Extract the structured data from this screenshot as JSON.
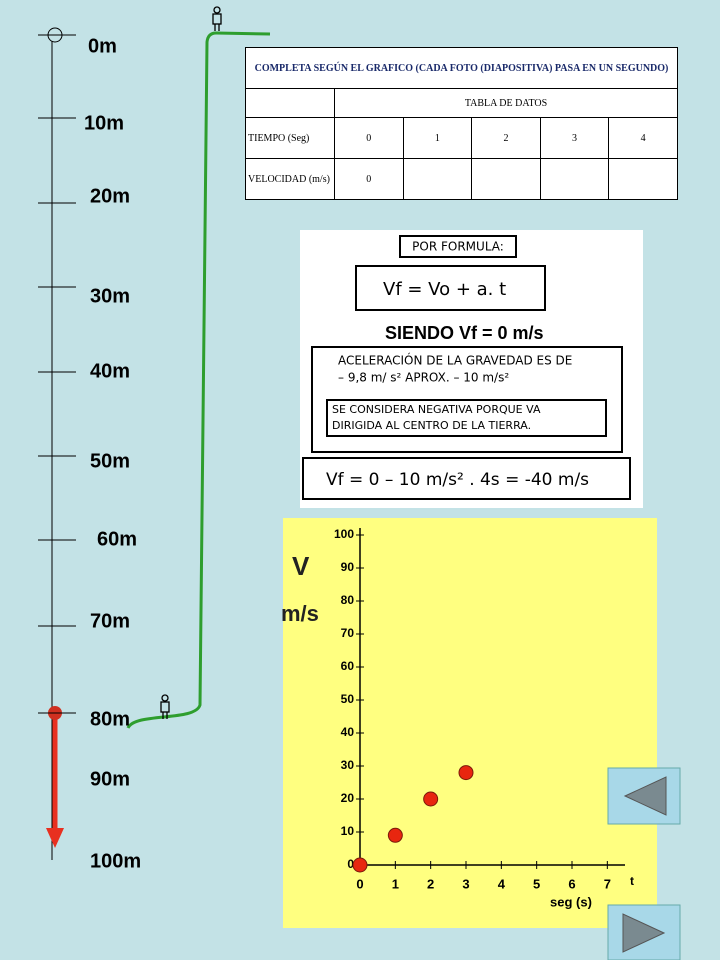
{
  "scale_labels": [
    "0m",
    "10m",
    "20m",
    "30m",
    "40m",
    "50m",
    "60m",
    "70m",
    "80m",
    "90m",
    "100m"
  ],
  "table": {
    "title": "COMPLETA SEGÚN EL GRAFICO  (CADA FOTO (DIAPOSITIVA) PASA EN UN SEGUNDO)",
    "subheader": "TABLA DE DATOS",
    "rows": [
      {
        "label": "TIEMPO (Seg)",
        "cells": [
          "0",
          "1",
          "2",
          "3",
          "4"
        ]
      },
      {
        "label": "VELOCIDAD (m/s)",
        "cells": [
          "0"
        ]
      }
    ]
  },
  "formula": {
    "heading": "POR FORMULA:",
    "main": "Vf =  Vo  + a. t",
    "condition": "SIENDO Vf = 0 m/s",
    "gravity": [
      "ACELERACIÓN DE LA GRAVEDAD ES DE",
      "– 9,8 m/ s²   APROX.    – 10 m/s²"
    ],
    "note": [
      "SE CONSIDERA NEGATIVA PORQUE VA",
      "DIRIGIDA AL CENTRO DE LA TIERRA."
    ],
    "result": "Vf =  0   – 10 m/s²  . 4s = -40 m/s"
  },
  "chart_data": {
    "type": "scatter",
    "y_label": "V",
    "y_unit": "m/s",
    "x_axis_name": "t",
    "x_label": "seg (s)",
    "x": [
      0,
      1,
      2,
      3
    ],
    "values": [
      0,
      9,
      20,
      28
    ],
    "color": "#e8260f",
    "xlim": [
      0,
      7.5
    ],
    "xticks": [
      0,
      1,
      2,
      3,
      4,
      5,
      6,
      7
    ],
    "ylim": [
      0,
      100
    ],
    "yticks": [
      0,
      10,
      20,
      30,
      40,
      50,
      60,
      70,
      80,
      90,
      100
    ]
  }
}
